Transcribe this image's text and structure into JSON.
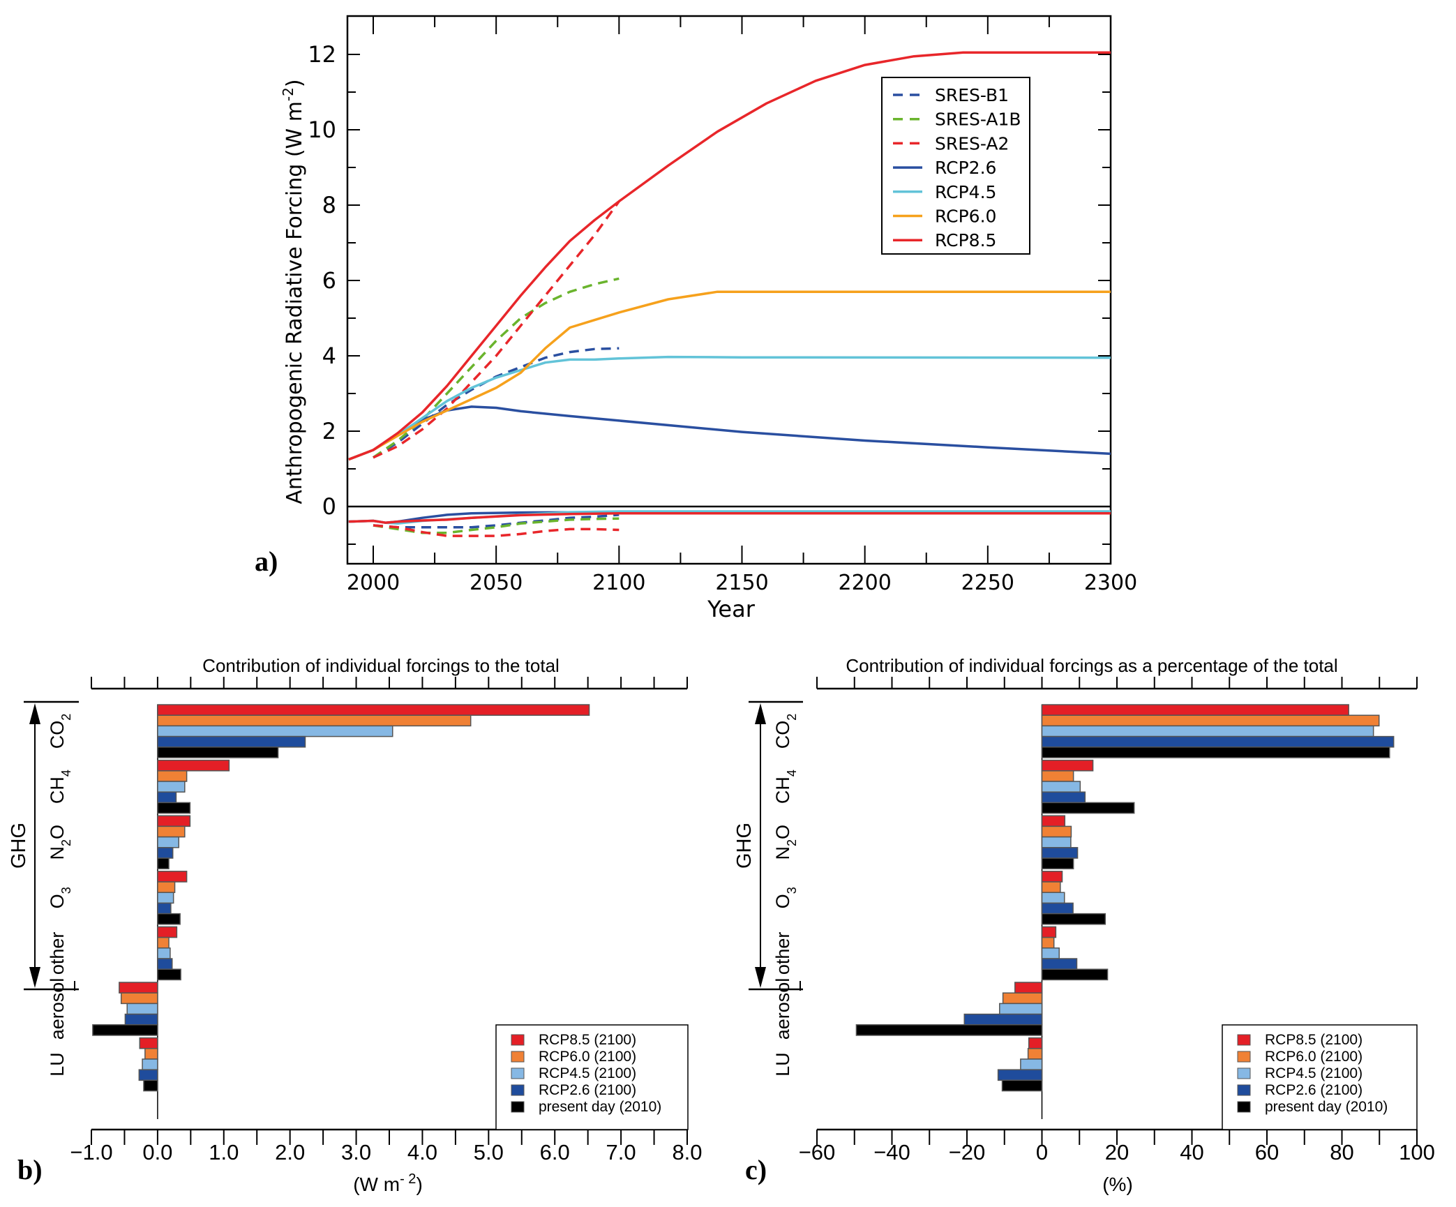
{
  "chart_data": [
    {
      "panel": "a)",
      "type": "line",
      "title": "",
      "xlabel": "Year",
      "ylabel": "Anthropogenic Radiative Forcing (W m-2)",
      "ylabel_main": "Anthropogenic Radiative Forcing (W m",
      "ylabel_sup": "-2",
      "ylabel_close": ")",
      "xlim": [
        1990,
        2300
      ],
      "ylim": [
        -1.5,
        13
      ],
      "xticks": [
        2000,
        2050,
        2100,
        2150,
        2200,
        2250,
        2300
      ],
      "yticks": [
        0,
        2,
        4,
        6,
        8,
        10,
        12
      ],
      "grid": false,
      "legend_position": "top-right",
      "series": [
        {
          "name": "SRES-B1",
          "color": "#2a4fa0",
          "dash": true,
          "x": [
            2000,
            2010,
            2020,
            2030,
            2040,
            2050,
            2060,
            2070,
            2080,
            2090,
            2100
          ],
          "y": [
            1.3,
            1.7,
            2.2,
            2.7,
            3.1,
            3.45,
            3.7,
            3.95,
            4.1,
            4.18,
            4.2
          ]
        },
        {
          "name": "SRES-A1B",
          "color": "#6ab42d",
          "dash": true,
          "x": [
            2000,
            2010,
            2020,
            2030,
            2040,
            2050,
            2060,
            2070,
            2080,
            2090,
            2100
          ],
          "y": [
            1.3,
            1.75,
            2.3,
            3.0,
            3.7,
            4.4,
            5.0,
            5.4,
            5.7,
            5.9,
            6.05
          ]
        },
        {
          "name": "SRES-A2",
          "color": "#e8262a",
          "dash": true,
          "x": [
            2000,
            2010,
            2020,
            2030,
            2040,
            2050,
            2060,
            2070,
            2080,
            2090,
            2100
          ],
          "y": [
            1.3,
            1.6,
            2.05,
            2.6,
            3.3,
            4.0,
            4.8,
            5.6,
            6.4,
            7.2,
            8.1
          ]
        },
        {
          "name": "RCP2.6",
          "color": "#2a4fa0",
          "dash": false,
          "x": [
            1990,
            2000,
            2010,
            2020,
            2030,
            2040,
            2050,
            2060,
            2080,
            2100,
            2150,
            2200,
            2250,
            2300
          ],
          "y": [
            1.25,
            1.5,
            1.9,
            2.3,
            2.55,
            2.65,
            2.62,
            2.53,
            2.4,
            2.28,
            1.98,
            1.75,
            1.57,
            1.4
          ]
        },
        {
          "name": "RCP4.5",
          "color": "#62c3d8",
          "dash": false,
          "x": [
            1990,
            2000,
            2010,
            2020,
            2030,
            2040,
            2050,
            2060,
            2070,
            2080,
            2090,
            2100,
            2120,
            2150,
            2300
          ],
          "y": [
            1.25,
            1.5,
            1.9,
            2.35,
            2.8,
            3.15,
            3.42,
            3.62,
            3.82,
            3.9,
            3.9,
            3.93,
            3.97,
            3.96,
            3.95
          ]
        },
        {
          "name": "RCP6.0",
          "color": "#f6a11c",
          "dash": false,
          "x": [
            1990,
            2000,
            2010,
            2020,
            2030,
            2040,
            2050,
            2060,
            2070,
            2080,
            2090,
            2100,
            2120,
            2140,
            2150,
            2300
          ],
          "y": [
            1.25,
            1.5,
            1.88,
            2.25,
            2.55,
            2.85,
            3.15,
            3.55,
            4.2,
            4.75,
            4.95,
            5.15,
            5.5,
            5.7,
            5.7,
            5.7
          ]
        },
        {
          "name": "RCP8.5",
          "color": "#e8262a",
          "dash": false,
          "x": [
            1990,
            2000,
            2010,
            2020,
            2030,
            2040,
            2050,
            2060,
            2070,
            2080,
            2090,
            2100,
            2120,
            2140,
            2160,
            2180,
            2200,
            2220,
            2240,
            2250,
            2300
          ],
          "y": [
            1.25,
            1.5,
            1.95,
            2.5,
            3.2,
            4.0,
            4.8,
            5.6,
            6.35,
            7.05,
            7.6,
            8.1,
            9.05,
            9.95,
            10.7,
            11.3,
            11.72,
            11.95,
            12.05,
            12.05,
            12.05
          ]
        }
      ],
      "aerosol_series": [
        {
          "name": "SRES-B1",
          "color": "#2a4fa0",
          "dash": true,
          "x": [
            2000,
            2010,
            2020,
            2030,
            2040,
            2050,
            2060,
            2070,
            2080,
            2090,
            2100
          ],
          "y": [
            -0.5,
            -0.55,
            -0.55,
            -0.55,
            -0.55,
            -0.5,
            -0.43,
            -0.37,
            -0.3,
            -0.27,
            -0.22
          ]
        },
        {
          "name": "SRES-A1B",
          "color": "#6ab42d",
          "dash": true,
          "x": [
            2000,
            2010,
            2020,
            2030,
            2040,
            2050,
            2060,
            2070,
            2080,
            2090,
            2100
          ],
          "y": [
            -0.5,
            -0.6,
            -0.7,
            -0.7,
            -0.62,
            -0.55,
            -0.45,
            -0.4,
            -0.35,
            -0.33,
            -0.32
          ]
        },
        {
          "name": "SRES-A2",
          "color": "#e8262a",
          "dash": true,
          "x": [
            2000,
            2010,
            2020,
            2030,
            2040,
            2050,
            2060,
            2070,
            2080,
            2090,
            2100
          ],
          "y": [
            -0.5,
            -0.55,
            -0.68,
            -0.78,
            -0.78,
            -0.78,
            -0.73,
            -0.65,
            -0.6,
            -0.6,
            -0.62
          ]
        },
        {
          "name": "RCP2.6",
          "color": "#2a4fa0",
          "dash": false,
          "x": [
            1990,
            2000,
            2005,
            2010,
            2020,
            2030,
            2040,
            2060,
            2100,
            2300
          ],
          "y": [
            -0.4,
            -0.38,
            -0.43,
            -0.4,
            -0.3,
            -0.22,
            -0.18,
            -0.16,
            -0.15,
            -0.15
          ]
        },
        {
          "name": "RCP4.5",
          "color": "#62c3d8",
          "dash": false,
          "x": [
            1990,
            2000,
            2005,
            2010,
            2020,
            2040,
            2060,
            2080,
            2100,
            2300
          ],
          "y": [
            -0.4,
            -0.38,
            -0.43,
            -0.45,
            -0.38,
            -0.3,
            -0.22,
            -0.15,
            -0.13,
            -0.13
          ]
        },
        {
          "name": "RCP8.5",
          "color": "#e8262a",
          "dash": false,
          "x": [
            1990,
            2000,
            2005,
            2010,
            2020,
            2030,
            2040,
            2060,
            2080,
            2100,
            2300
          ],
          "y": [
            -0.4,
            -0.38,
            -0.43,
            -0.4,
            -0.37,
            -0.35,
            -0.3,
            -0.23,
            -0.2,
            -0.18,
            -0.18
          ]
        }
      ]
    },
    {
      "panel": "b)",
      "type": "bar",
      "orientation": "horizontal",
      "title": "Contribution of individual forcings to the total",
      "xlabel": "(W m-2)",
      "xlabel_main": "(W m",
      "xlabel_sup": "- 2",
      "xlabel_close": ")",
      "xlim": [
        -1.0,
        8.0
      ],
      "xticks": [
        -1.0,
        0.0,
        1.0,
        2.0,
        3.0,
        4.0,
        5.0,
        6.0,
        7.0,
        8.0
      ],
      "xtick_labels": [
        "−1.0",
        "0.0",
        "1.0",
        "2.0",
        "3.0",
        "4.0",
        "5.0",
        "6.0",
        "7.0",
        "8.0"
      ],
      "legend_position": "bottom-right",
      "categories": [
        "CO2",
        "CH4",
        "N2O",
        "O3",
        "other",
        "aerosol",
        "LU"
      ],
      "series": [
        {
          "name": "RCP8.5 (2100)",
          "color": "#e41f26",
          "values": [
            6.52,
            1.08,
            0.49,
            0.44,
            0.29,
            -0.58,
            -0.27
          ]
        },
        {
          "name": "RCP6.0 (2100)",
          "color": "#f08135",
          "values": [
            4.73,
            0.44,
            0.41,
            0.26,
            0.17,
            -0.55,
            -0.19
          ]
        },
        {
          "name": "RCP4.5 (2100)",
          "color": "#86b8e4",
          "values": [
            3.55,
            0.41,
            0.32,
            0.24,
            0.19,
            -0.46,
            -0.23
          ]
        },
        {
          "name": "RCP2.6 (2100)",
          "color": "#1f4c9c",
          "values": [
            2.23,
            0.28,
            0.23,
            0.2,
            0.22,
            -0.49,
            -0.28
          ]
        },
        {
          "name": "present day (2010)",
          "color": "#000000",
          "values": [
            1.82,
            0.49,
            0.17,
            0.34,
            0.35,
            -0.98,
            -0.21
          ]
        }
      ]
    },
    {
      "panel": "c)",
      "type": "bar",
      "orientation": "horizontal",
      "title": "Contribution of individual forcings as a percentage of the total",
      "xlabel": "(%)",
      "xlim": [
        -60,
        100
      ],
      "xticks": [
        -60,
        -40,
        -20,
        0,
        20,
        40,
        60,
        80,
        100
      ],
      "xtick_labels": [
        "−60",
        "−40",
        "−20",
        "0",
        "20",
        "40",
        "60",
        "80",
        "100"
      ],
      "legend_position": "bottom-right",
      "categories": [
        "CO2",
        "CH4",
        "N2O",
        "O3",
        "other",
        "aerosol",
        "LU"
      ],
      "series": [
        {
          "name": "RCP8.5 (2100)",
          "color": "#e41f26",
          "values": [
            81.8,
            13.6,
            6.1,
            5.4,
            3.7,
            -7.2,
            -3.5
          ]
        },
        {
          "name": "RCP6.0 (2100)",
          "color": "#f08135",
          "values": [
            89.9,
            8.4,
            7.8,
            4.9,
            3.2,
            -10.4,
            -3.7
          ]
        },
        {
          "name": "RCP4.5 (2100)",
          "color": "#86b8e4",
          "values": [
            88.4,
            10.2,
            7.7,
            6.0,
            4.6,
            -11.3,
            -5.7
          ]
        },
        {
          "name": "RCP2.6 (2100)",
          "color": "#1f4c9c",
          "values": [
            93.8,
            11.5,
            9.5,
            8.3,
            9.3,
            -20.7,
            -11.7
          ]
        },
        {
          "name": "present day (2010)",
          "color": "#000000",
          "values": [
            92.7,
            24.6,
            8.4,
            16.9,
            17.5,
            -49.5,
            -10.6
          ]
        }
      ]
    }
  ],
  "category_labels": [
    {
      "main": "CO",
      "sub": "2",
      "tail": ""
    },
    {
      "main": "CH",
      "sub": "4",
      "tail": ""
    },
    {
      "main": "N",
      "sub": "2",
      "tail": "O"
    },
    {
      "main": "O",
      "sub": "3",
      "tail": ""
    },
    {
      "main": "other",
      "sub": "",
      "tail": ""
    },
    {
      "main": "aerosol",
      "sub": "",
      "tail": ""
    },
    {
      "main": "LU",
      "sub": "",
      "tail": ""
    }
  ],
  "ghg_label": "GHG"
}
